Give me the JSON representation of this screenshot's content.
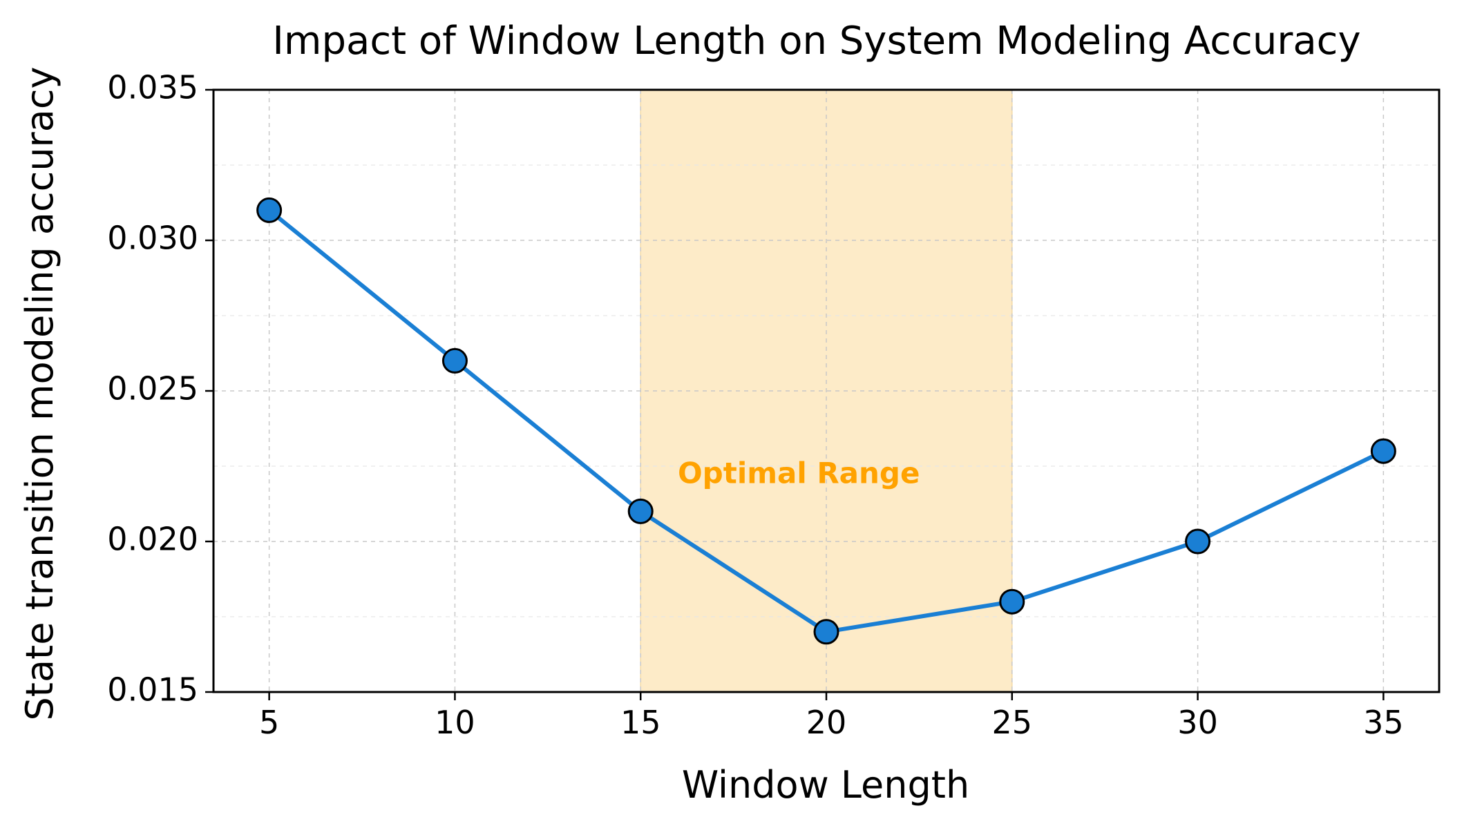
{
  "chart_data": {
    "type": "line",
    "title": "Impact of Window Length on System Modeling Accuracy",
    "xlabel": "Window Length",
    "ylabel": "State transition modeling accuracy",
    "x": [
      5,
      10,
      15,
      20,
      25,
      30,
      35
    ],
    "series": [
      {
        "values": [
          0.031,
          0.026,
          0.021,
          0.017,
          0.018,
          0.02,
          0.023
        ]
      }
    ],
    "xlim": [
      3.5,
      36.5
    ],
    "ylim": [
      0.015,
      0.035
    ],
    "xticks": [
      5,
      10,
      15,
      20,
      25,
      30,
      35
    ],
    "xtick_labels": [
      "5",
      "10",
      "15",
      "20",
      "25",
      "30",
      "35"
    ],
    "yticks": [
      0.015,
      0.02,
      0.025,
      0.03,
      0.035
    ],
    "ytick_labels": [
      "0.015",
      "0.020",
      "0.025",
      "0.030",
      "0.035"
    ],
    "grid": true,
    "highlight_region": {
      "x_start": 15,
      "x_end": 25,
      "label": "Optimal Range"
    },
    "annotation": {
      "text": "Optimal Range",
      "x": 16,
      "y": 0.0222
    },
    "colors": {
      "line": "#1a7fd4",
      "marker_fill": "#1a7fd4",
      "marker_edge": "#000000",
      "highlight": "#fdebc8",
      "annotation": "#ffa200"
    }
  }
}
